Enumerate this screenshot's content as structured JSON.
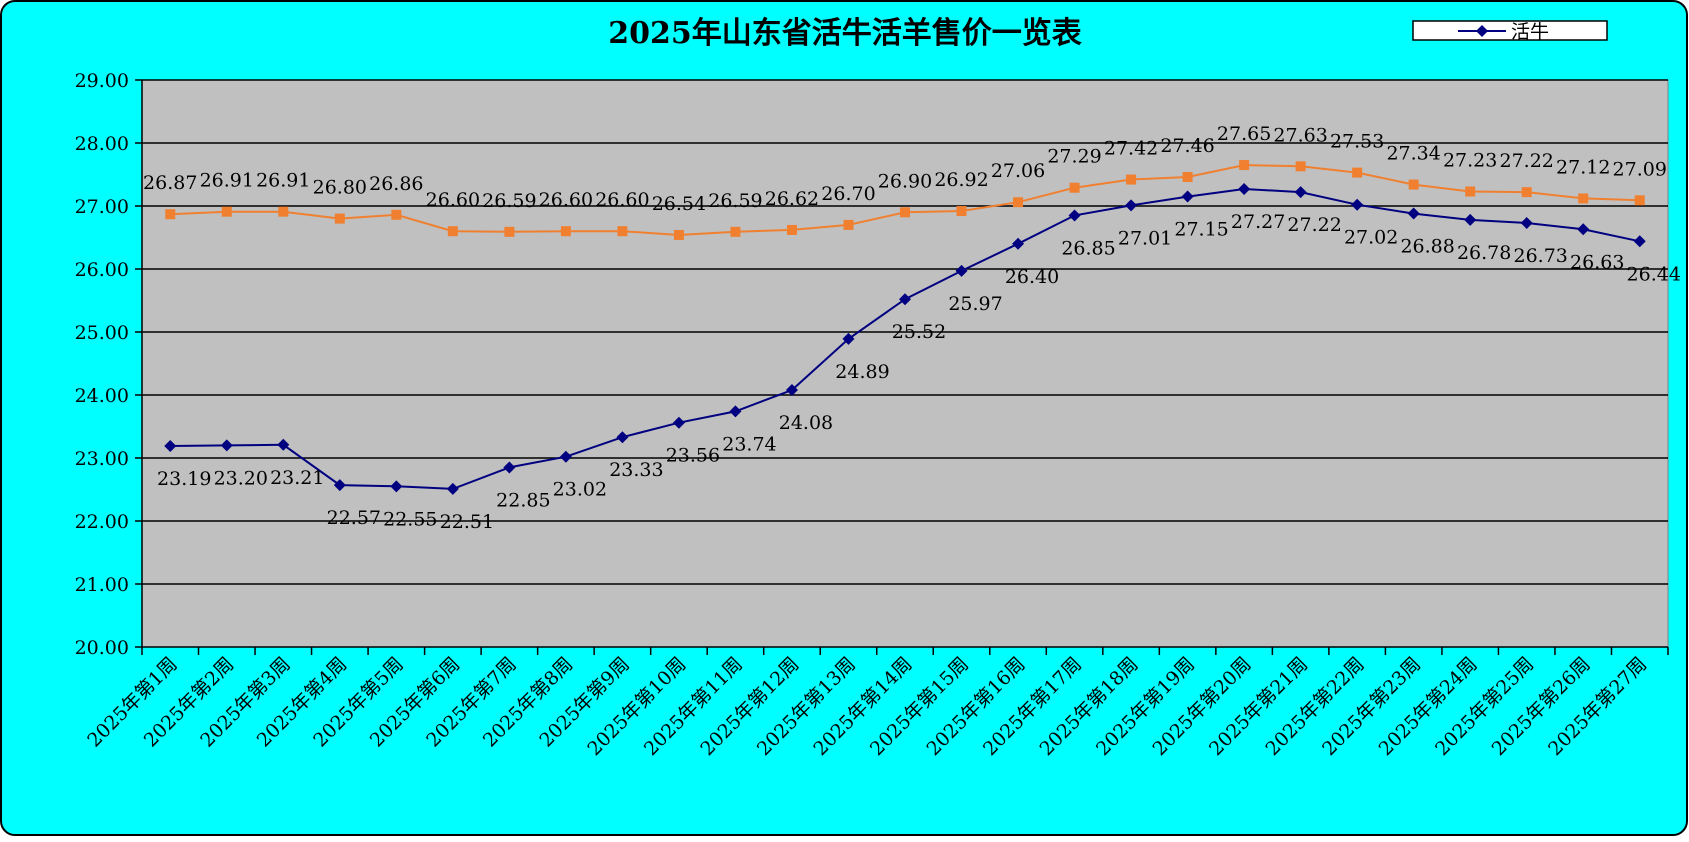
{
  "chart_data": {
    "type": "line",
    "title": "2025年山东省活牛活羊售价一览表",
    "xlabel": "",
    "ylabel": "",
    "ylim": [
      20,
      29
    ],
    "yticks": [
      "20.00",
      "21.00",
      "22.00",
      "23.00",
      "24.00",
      "25.00",
      "26.00",
      "27.00",
      "28.00",
      "29.00"
    ],
    "grid": true,
    "legend_position": "top-right",
    "categories": [
      "2025年第1周",
      "2025年第2周",
      "2025年第3周",
      "2025年第4周",
      "2025年第5周",
      "2025年第6周",
      "2025年第7周",
      "2025年第8周",
      "2025年第9周",
      "2025年第10周",
      "2025年第11周",
      "2025年第12周",
      "2025年第13周",
      "2025年第14周",
      "2025年第15周",
      "2025年第16周",
      "2025年第17周",
      "2025年第18周",
      "2025年第19周",
      "2025年第20周",
      "2025年第21周",
      "2025年第22周",
      "2025年第23周",
      "2025年第24周",
      "2025年第25周",
      "2025年第26周",
      "2025年第27周"
    ],
    "series": [
      {
        "name": "活牛",
        "legend": true,
        "color": "#000080",
        "marker": "diamond",
        "values": [
          23.19,
          23.2,
          23.21,
          22.57,
          22.55,
          22.51,
          22.85,
          23.02,
          23.33,
          23.56,
          23.74,
          24.08,
          24.89,
          25.52,
          25.97,
          26.4,
          26.85,
          27.01,
          27.15,
          27.27,
          27.22,
          27.02,
          26.88,
          26.78,
          26.73,
          26.63,
          26.44
        ],
        "labels": [
          "23.19",
          "23.20",
          "23.21",
          "22.57",
          "22.55",
          "22.51",
          "22.85",
          "23.02",
          "23.33",
          "23.56",
          "23.74",
          "24.08",
          "24.89",
          "25.52",
          "25.97",
          "26.40",
          "26.85",
          "27.01",
          "27.15",
          "27.27",
          "27.22",
          "27.02",
          "26.88",
          "26.78",
          "26.73",
          "26.63",
          "26.44"
        ]
      },
      {
        "legend": false,
        "color": "#F08030",
        "marker": "square",
        "values": [
          26.87,
          26.91,
          26.91,
          26.8,
          26.86,
          26.6,
          26.59,
          26.6,
          26.6,
          26.54,
          26.59,
          26.62,
          26.7,
          26.9,
          26.92,
          27.06,
          27.29,
          27.42,
          27.46,
          27.65,
          27.63,
          27.53,
          27.34,
          27.23,
          27.22,
          27.12,
          27.09
        ],
        "labels": [
          "26.87",
          "26.91",
          "26.91",
          "26.80",
          "26.86",
          "26.60",
          "26.59",
          "26.60",
          "26.60",
          "26.54",
          "26.59",
          "26.62",
          "26.70",
          "26.90",
          "26.92",
          "27.06",
          "27.29",
          "27.42",
          "27.46",
          "27.65",
          "27.63",
          "27.53",
          "27.34",
          "27.23",
          "27.22",
          "27.12",
          "27.09"
        ]
      }
    ],
    "colors": {
      "background": "#00FFFF",
      "plot_area": "#C0C0C0",
      "grid": "#000000"
    }
  }
}
